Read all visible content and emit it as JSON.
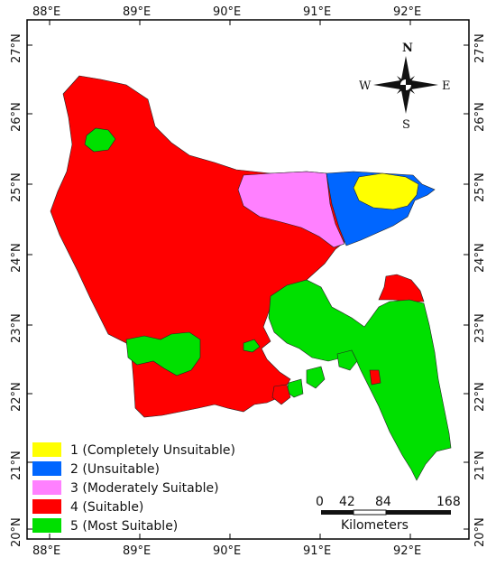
{
  "map": {
    "lon_ticks": [
      "88°E",
      "89°E",
      "90°E",
      "91°E",
      "92°E"
    ],
    "lat_ticks": [
      "27°N",
      "26°N",
      "25°N",
      "24°N",
      "23°N",
      "22°N",
      "21°N",
      "20°N"
    ],
    "compass": {
      "n": "N",
      "s": "S",
      "e": "E",
      "w": "W"
    },
    "legend": [
      {
        "label": "1 (Completely Unsuitable)",
        "color": "#ffff00"
      },
      {
        "label": "2 (Unsuitable)",
        "color": "#0066ff"
      },
      {
        "label": "3 (Moderately Suitable)",
        "color": "#ff80ff"
      },
      {
        "label": "4 (Suitable)",
        "color": "#ff0000"
      },
      {
        "label": "5 (Most Suitable)",
        "color": "#00e000"
      }
    ],
    "scale_bar": {
      "labels": [
        "0",
        "42",
        "84",
        "168"
      ],
      "unit": "Kilometers"
    }
  }
}
